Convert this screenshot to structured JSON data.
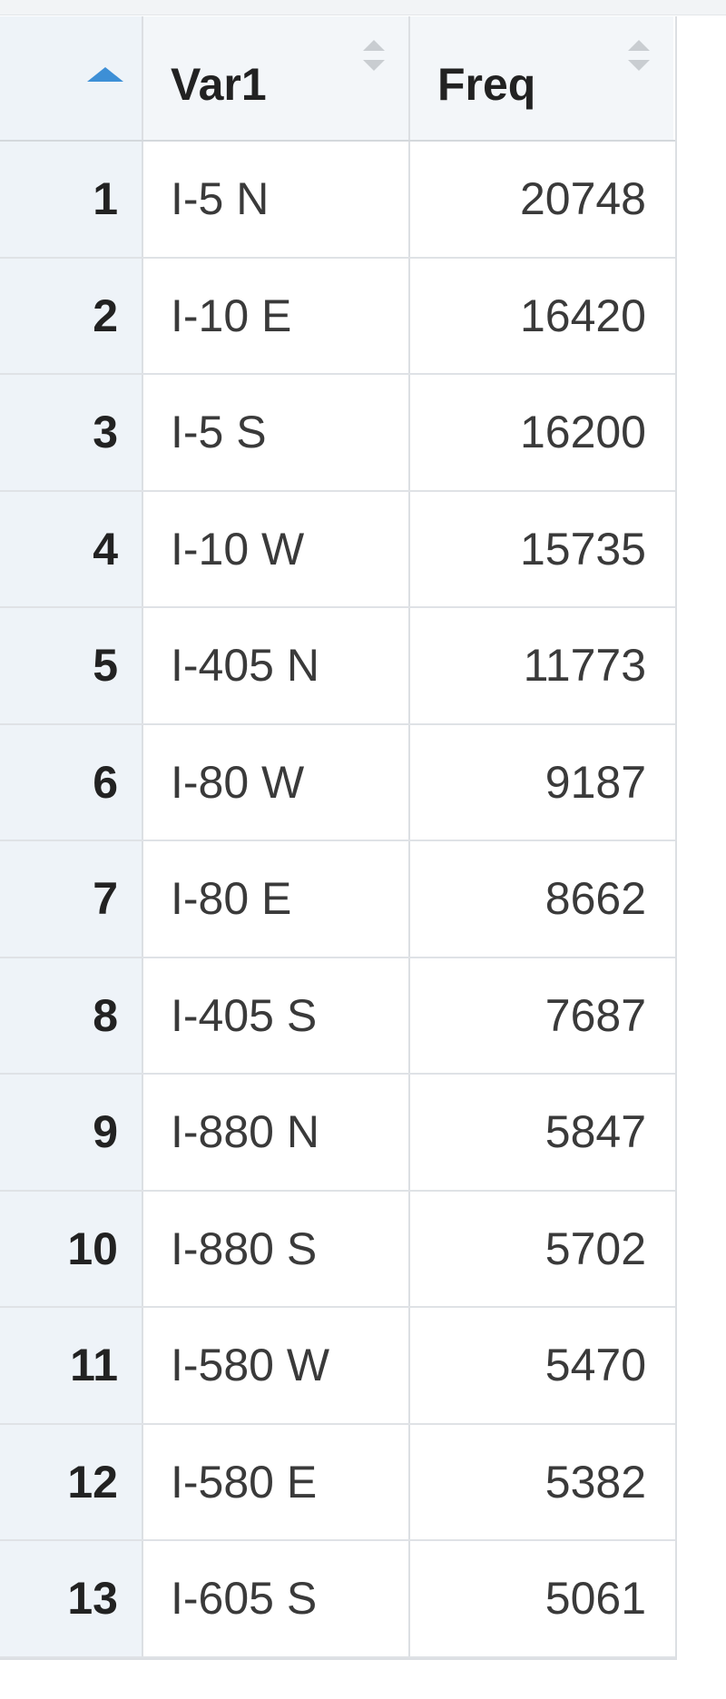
{
  "table": {
    "columns": [
      {
        "key": "index",
        "label": ""
      },
      {
        "key": "var1",
        "label": "Var1"
      },
      {
        "key": "freq",
        "label": "Freq"
      }
    ],
    "sort": {
      "column": "index",
      "direction": "ascending"
    },
    "rows": [
      {
        "index": "1",
        "var1": "I-5 N",
        "freq": "20748"
      },
      {
        "index": "2",
        "var1": "I-10 E",
        "freq": "16420"
      },
      {
        "index": "3",
        "var1": "I-5 S",
        "freq": "16200"
      },
      {
        "index": "4",
        "var1": "I-10 W",
        "freq": "15735"
      },
      {
        "index": "5",
        "var1": "I-405 N",
        "freq": "11773"
      },
      {
        "index": "6",
        "var1": "I-80 W",
        "freq": "9187"
      },
      {
        "index": "7",
        "var1": "I-80 E",
        "freq": "8662"
      },
      {
        "index": "8",
        "var1": "I-405 S",
        "freq": "7687"
      },
      {
        "index": "9",
        "var1": "I-880 N",
        "freq": "5847"
      },
      {
        "index": "10",
        "var1": "I-880 S",
        "freq": "5702"
      },
      {
        "index": "11",
        "var1": "I-580 W",
        "freq": "5470"
      },
      {
        "index": "12",
        "var1": "I-580 E",
        "freq": "5382"
      },
      {
        "index": "13",
        "var1": "I-605 S",
        "freq": "5061"
      }
    ]
  },
  "colors": {
    "sort_active": "#3d8fd6",
    "sort_inactive": "#c9cdd1",
    "index_column_bg": "#eef3f8"
  }
}
